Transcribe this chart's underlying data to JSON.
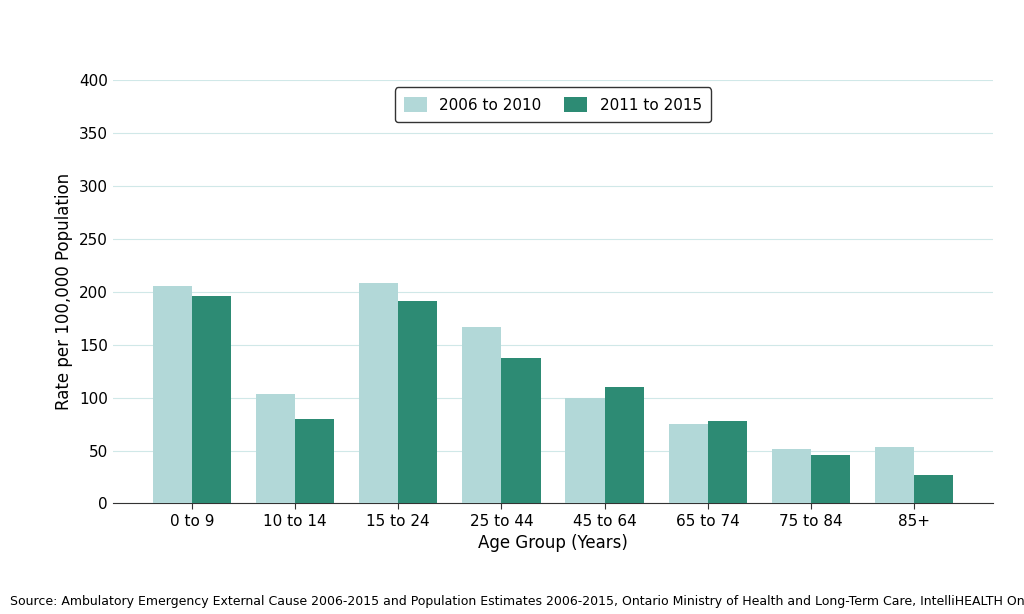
{
  "categories": [
    "0 to 9",
    "10 to 14",
    "15 to 24",
    "25 to 44",
    "45 to 64",
    "65 to 74",
    "75 to 84",
    "85+"
  ],
  "values_2006_2010": [
    205,
    103,
    208,
    167,
    100,
    75,
    51,
    53
  ],
  "values_2011_2015": [
    196,
    80,
    191,
    137,
    110,
    78,
    46,
    27
  ],
  "color_2006_2010": "#b2d8d8",
  "color_2011_2015": "#2d8b74",
  "legend_labels": [
    "2006 to 2010",
    "2011 to 2015"
  ],
  "xlabel": "Age Group (Years)",
  "ylabel": "Rate per 100,000 Population",
  "ylim": [
    0,
    400
  ],
  "yticks": [
    0,
    50,
    100,
    150,
    200,
    250,
    300,
    350,
    400
  ],
  "source_text": "Source: Ambulatory Emergency External Cause 2006-2015 and Population Estimates 2006-2015, Ontario Ministry of Health and Long-Term Care, IntelliHEALTH Ontario",
  "bar_width": 0.38,
  "background_color": "#ffffff",
  "grid_color": "#d0e8e8",
  "label_fontsize": 12,
  "tick_fontsize": 11,
  "legend_fontsize": 11,
  "source_fontsize": 9
}
